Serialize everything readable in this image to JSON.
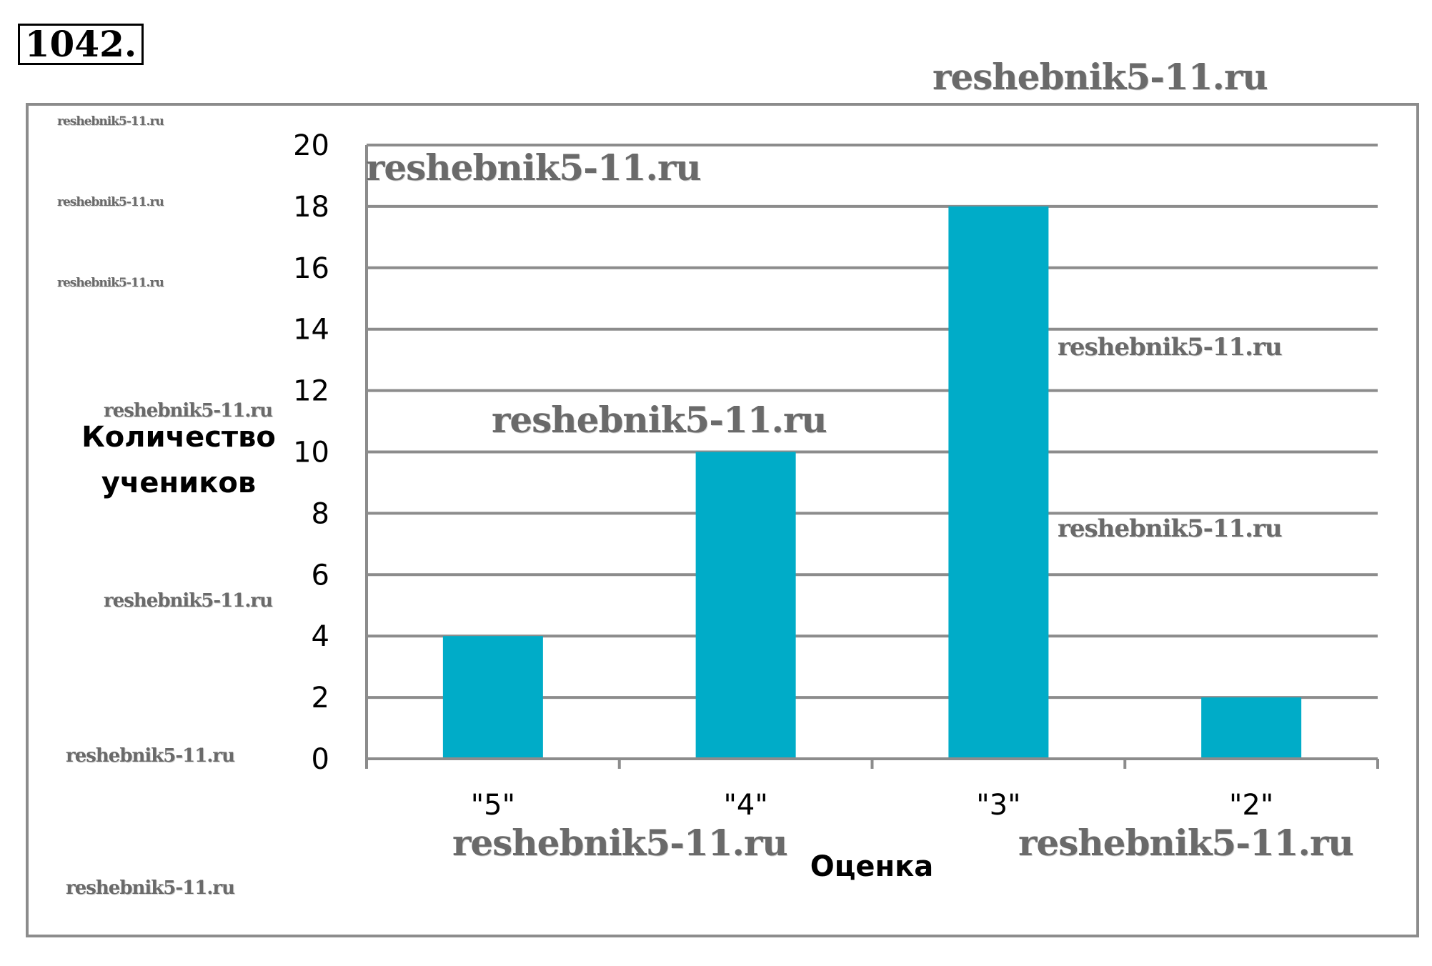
{
  "problem_number": "1042.",
  "watermarks": {
    "text": "reshebnik5-11.ru"
  },
  "chart_data": {
    "type": "bar",
    "categories": [
      "\"5\"",
      "\"4\"",
      "\"3\"",
      "\"2\""
    ],
    "values": [
      4,
      10,
      18,
      2
    ],
    "xlabel": "Оценка",
    "ylabel_lines": [
      "Количество",
      "учеников"
    ],
    "ylim": [
      0,
      20
    ],
    "yticks": [
      0,
      2,
      4,
      6,
      8,
      10,
      12,
      14,
      16,
      18,
      20
    ],
    "grid": true,
    "legend": "none",
    "bar_color": "#00acc8",
    "grid_color": "#8c8c8c"
  }
}
